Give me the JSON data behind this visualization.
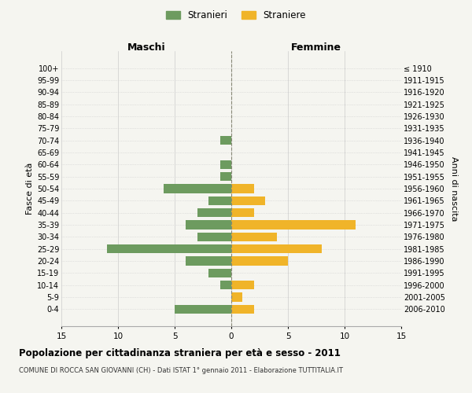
{
  "age_groups": [
    "100+",
    "95-99",
    "90-94",
    "85-89",
    "80-84",
    "75-79",
    "70-74",
    "65-69",
    "60-64",
    "55-59",
    "50-54",
    "45-49",
    "40-44",
    "35-39",
    "30-34",
    "25-29",
    "20-24",
    "15-19",
    "10-14",
    "5-9",
    "0-4"
  ],
  "birth_years": [
    "≤ 1910",
    "1911-1915",
    "1916-1920",
    "1921-1925",
    "1926-1930",
    "1931-1935",
    "1936-1940",
    "1941-1945",
    "1946-1950",
    "1951-1955",
    "1956-1960",
    "1961-1965",
    "1966-1970",
    "1971-1975",
    "1976-1980",
    "1981-1985",
    "1986-1990",
    "1991-1995",
    "1996-2000",
    "2001-2005",
    "2006-2010"
  ],
  "males": [
    0,
    0,
    0,
    0,
    0,
    0,
    1,
    0,
    1,
    1,
    6,
    2,
    3,
    4,
    3,
    11,
    4,
    2,
    1,
    0,
    5
  ],
  "females": [
    0,
    0,
    0,
    0,
    0,
    0,
    0,
    0,
    0,
    0,
    2,
    3,
    2,
    11,
    4,
    8,
    5,
    0,
    2,
    1,
    2
  ],
  "male_color": "#6d9b5f",
  "female_color": "#f0b429",
  "background_color": "#f5f5f0",
  "grid_color": "#cccccc",
  "center_line_color": "#888877",
  "title": "Popolazione per cittadinanza straniera per età e sesso - 2011",
  "subtitle": "COMUNE DI ROCCA SAN GIOVANNI (CH) - Dati ISTAT 1° gennaio 2011 - Elaborazione TUTTITALIA.IT",
  "left_label": "Maschi",
  "right_label": "Femmine",
  "left_axis_label": "Fasce di età",
  "right_axis_label": "Anni di nascita",
  "legend_male": "Stranieri",
  "legend_female": "Straniere",
  "xlim": 15
}
